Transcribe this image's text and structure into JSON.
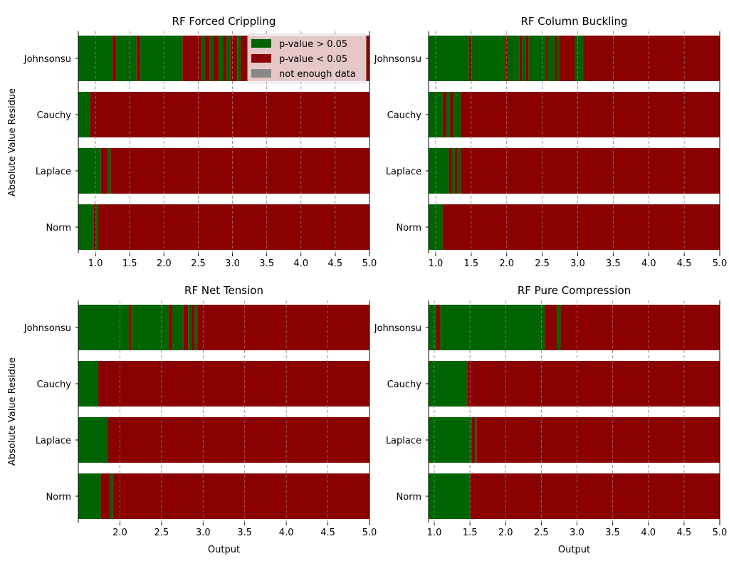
{
  "colors": {
    "pass": "#006400",
    "fail": "#8b0000",
    "no_data": "#888888",
    "grid": "#808080"
  },
  "legend": {
    "placement": "top-right of first panel",
    "entries": [
      {
        "label": "p-value > 0.05",
        "color": "#006400"
      },
      {
        "label": "p-value < 0.05",
        "color": "#8b0000"
      },
      {
        "label": "not enough data",
        "color": "#888888"
      }
    ]
  },
  "chart_data": [
    {
      "type": "bar",
      "orientation": "horizontal-segmented",
      "title": "RF Forced Crippling",
      "xlabel": "",
      "ylabel": "Absolute Value Residue",
      "xlim": [
        0.75,
        5.0
      ],
      "xticks": [
        "1.0",
        "1.5",
        "2.0",
        "2.5",
        "3.0",
        "3.5",
        "4.0",
        "4.5",
        "5.0"
      ],
      "grid": "vertical dashed",
      "categories": [
        "Johnsonsu",
        "Cauchy",
        "Laplace",
        "Norm"
      ],
      "series": [
        {
          "category": "Johnsonsu",
          "segments": [
            {
              "from": 0.75,
              "to": 1.25,
              "status": "pass"
            },
            {
              "from": 1.25,
              "to": 1.3,
              "status": "fail"
            },
            {
              "from": 1.3,
              "to": 1.6,
              "status": "pass"
            },
            {
              "from": 1.6,
              "to": 1.65,
              "status": "fail"
            },
            {
              "from": 1.65,
              "to": 2.27,
              "status": "pass"
            },
            {
              "from": 2.27,
              "to": 2.55,
              "status": "fail"
            },
            {
              "from": 2.55,
              "to": 2.6,
              "status": "pass"
            },
            {
              "from": 2.6,
              "to": 2.67,
              "status": "fail"
            },
            {
              "from": 2.67,
              "to": 2.72,
              "status": "pass"
            },
            {
              "from": 2.72,
              "to": 2.8,
              "status": "fail"
            },
            {
              "from": 2.8,
              "to": 2.87,
              "status": "pass"
            },
            {
              "from": 2.87,
              "to": 2.92,
              "status": "fail"
            },
            {
              "from": 2.92,
              "to": 2.97,
              "status": "pass"
            },
            {
              "from": 2.97,
              "to": 3.07,
              "status": "fail"
            },
            {
              "from": 3.07,
              "to": 3.12,
              "status": "pass"
            },
            {
              "from": 3.12,
              "to": 5.0,
              "status": "fail"
            }
          ]
        },
        {
          "category": "Cauchy",
          "segments": [
            {
              "from": 0.75,
              "to": 0.92,
              "status": "pass"
            },
            {
              "from": 0.92,
              "to": 5.0,
              "status": "fail"
            }
          ]
        },
        {
          "category": "Laplace",
          "segments": [
            {
              "from": 0.75,
              "to": 1.08,
              "status": "pass"
            },
            {
              "from": 1.08,
              "to": 1.18,
              "status": "fail"
            },
            {
              "from": 1.18,
              "to": 1.22,
              "status": "pass"
            },
            {
              "from": 1.22,
              "to": 5.0,
              "status": "fail"
            }
          ]
        },
        {
          "category": "Norm",
          "segments": [
            {
              "from": 0.75,
              "to": 0.97,
              "status": "pass"
            },
            {
              "from": 0.97,
              "to": 1.01,
              "status": "fail"
            },
            {
              "from": 1.01,
              "to": 1.04,
              "status": "pass"
            },
            {
              "from": 1.04,
              "to": 5.0,
              "status": "fail"
            }
          ]
        }
      ]
    },
    {
      "type": "bar",
      "orientation": "horizontal-segmented",
      "title": "RF Column Buckling",
      "xlabel": "",
      "ylabel": "",
      "xlim": [
        0.9,
        5.0
      ],
      "xticks": [
        "1.0",
        "1.5",
        "2.0",
        "2.5",
        "3.0",
        "3.5",
        "4.0",
        "4.5",
        "5.0"
      ],
      "grid": "vertical dashed",
      "categories": [
        "Johnsonsu",
        "Cauchy",
        "Laplace",
        "Norm"
      ],
      "series": [
        {
          "category": "Johnsonsu",
          "segments": [
            {
              "from": 0.9,
              "to": 1.47,
              "status": "pass"
            },
            {
              "from": 1.47,
              "to": 1.5,
              "status": "fail"
            },
            {
              "from": 1.5,
              "to": 1.98,
              "status": "pass"
            },
            {
              "from": 1.98,
              "to": 2.02,
              "status": "fail"
            },
            {
              "from": 2.02,
              "to": 2.18,
              "status": "pass"
            },
            {
              "from": 2.18,
              "to": 2.22,
              "status": "fail"
            },
            {
              "from": 2.22,
              "to": 2.27,
              "status": "pass"
            },
            {
              "from": 2.27,
              "to": 2.31,
              "status": "fail"
            },
            {
              "from": 2.31,
              "to": 2.55,
              "status": "pass"
            },
            {
              "from": 2.55,
              "to": 2.58,
              "status": "fail"
            },
            {
              "from": 2.58,
              "to": 2.68,
              "status": "pass"
            },
            {
              "from": 2.68,
              "to": 2.71,
              "status": "fail"
            },
            {
              "from": 2.71,
              "to": 2.74,
              "status": "pass"
            },
            {
              "from": 2.74,
              "to": 2.96,
              "status": "fail"
            },
            {
              "from": 2.96,
              "to": 3.08,
              "status": "pass"
            },
            {
              "from": 3.08,
              "to": 5.0,
              "status": "fail"
            }
          ]
        },
        {
          "category": "Cauchy",
          "segments": [
            {
              "from": 0.9,
              "to": 1.1,
              "status": "pass"
            },
            {
              "from": 1.1,
              "to": 1.15,
              "status": "fail"
            },
            {
              "from": 1.15,
              "to": 1.2,
              "status": "pass"
            },
            {
              "from": 1.2,
              "to": 1.25,
              "status": "fail"
            },
            {
              "from": 1.25,
              "to": 1.35,
              "status": "pass"
            },
            {
              "from": 1.35,
              "to": 5.0,
              "status": "fail"
            }
          ]
        },
        {
          "category": "Laplace",
          "segments": [
            {
              "from": 0.9,
              "to": 1.19,
              "status": "pass"
            },
            {
              "from": 1.19,
              "to": 1.23,
              "status": "fail"
            },
            {
              "from": 1.23,
              "to": 1.27,
              "status": "pass"
            },
            {
              "from": 1.27,
              "to": 1.31,
              "status": "fail"
            },
            {
              "from": 1.31,
              "to": 1.35,
              "status": "pass"
            },
            {
              "from": 1.35,
              "to": 5.0,
              "status": "fail"
            }
          ]
        },
        {
          "category": "Norm",
          "segments": [
            {
              "from": 0.9,
              "to": 1.1,
              "status": "pass"
            },
            {
              "from": 1.1,
              "to": 5.0,
              "status": "fail"
            }
          ]
        }
      ]
    },
    {
      "type": "bar",
      "orientation": "horizontal-segmented",
      "title": "RF Net Tension",
      "xlabel": "Output",
      "ylabel": "Absolute Value Residue",
      "xlim": [
        1.5,
        5.0
      ],
      "xticks": [
        "2.0",
        "2.5",
        "3.0",
        "3.5",
        "4.0",
        "4.5",
        "5.0"
      ],
      "grid": "vertical dashed",
      "categories": [
        "Johnsonsu",
        "Cauchy",
        "Laplace",
        "Norm"
      ],
      "series": [
        {
          "category": "Johnsonsu",
          "segments": [
            {
              "from": 1.5,
              "to": 2.11,
              "status": "pass"
            },
            {
              "from": 2.11,
              "to": 2.14,
              "status": "fail"
            },
            {
              "from": 2.14,
              "to": 2.59,
              "status": "pass"
            },
            {
              "from": 2.59,
              "to": 2.63,
              "status": "fail"
            },
            {
              "from": 2.63,
              "to": 2.76,
              "status": "pass"
            },
            {
              "from": 2.76,
              "to": 2.82,
              "status": "fail"
            },
            {
              "from": 2.82,
              "to": 2.86,
              "status": "pass"
            },
            {
              "from": 2.86,
              "to": 2.9,
              "status": "fail"
            },
            {
              "from": 2.9,
              "to": 2.93,
              "status": "pass"
            },
            {
              "from": 2.93,
              "to": 5.0,
              "status": "fail"
            }
          ]
        },
        {
          "category": "Cauchy",
          "segments": [
            {
              "from": 1.5,
              "to": 1.74,
              "status": "pass"
            },
            {
              "from": 1.74,
              "to": 5.0,
              "status": "fail"
            }
          ]
        },
        {
          "category": "Laplace",
          "segments": [
            {
              "from": 1.5,
              "to": 1.85,
              "status": "pass"
            },
            {
              "from": 1.85,
              "to": 5.0,
              "status": "fail"
            }
          ]
        },
        {
          "category": "Norm",
          "segments": [
            {
              "from": 1.5,
              "to": 1.77,
              "status": "pass"
            },
            {
              "from": 1.77,
              "to": 1.88,
              "status": "fail"
            },
            {
              "from": 1.88,
              "to": 1.92,
              "status": "pass"
            },
            {
              "from": 1.92,
              "to": 5.0,
              "status": "fail"
            }
          ]
        }
      ]
    },
    {
      "type": "bar",
      "orientation": "horizontal-segmented",
      "title": "RF Pure Compression",
      "xlabel": "Output",
      "ylabel": "",
      "xlim": [
        0.92,
        5.0
      ],
      "xticks": [
        "1.0",
        "1.5",
        "2.0",
        "2.5",
        "3.0",
        "3.5",
        "4.0",
        "4.5",
        "5.0"
      ],
      "grid": "vertical dashed",
      "categories": [
        "Johnsonsu",
        "Cauchy",
        "Laplace",
        "Norm"
      ],
      "series": [
        {
          "category": "Johnsonsu",
          "segments": [
            {
              "from": 0.92,
              "to": 1.03,
              "status": "pass"
            },
            {
              "from": 1.03,
              "to": 1.08,
              "status": "fail"
            },
            {
              "from": 1.08,
              "to": 2.55,
              "status": "pass"
            },
            {
              "from": 2.55,
              "to": 2.72,
              "status": "fail"
            },
            {
              "from": 2.72,
              "to": 2.77,
              "status": "pass"
            },
            {
              "from": 2.77,
              "to": 5.0,
              "status": "fail"
            }
          ]
        },
        {
          "category": "Cauchy",
          "segments": [
            {
              "from": 0.92,
              "to": 1.46,
              "status": "pass"
            },
            {
              "from": 1.46,
              "to": 5.0,
              "status": "fail"
            }
          ]
        },
        {
          "category": "Laplace",
          "segments": [
            {
              "from": 0.92,
              "to": 1.52,
              "status": "pass"
            },
            {
              "from": 1.52,
              "to": 1.57,
              "status": "fail"
            },
            {
              "from": 1.57,
              "to": 1.59,
              "status": "pass"
            },
            {
              "from": 1.59,
              "to": 5.0,
              "status": "fail"
            }
          ]
        },
        {
          "category": "Norm",
          "segments": [
            {
              "from": 0.92,
              "to": 1.5,
              "status": "pass"
            },
            {
              "from": 1.5,
              "to": 5.0,
              "status": "fail"
            }
          ]
        }
      ]
    }
  ]
}
